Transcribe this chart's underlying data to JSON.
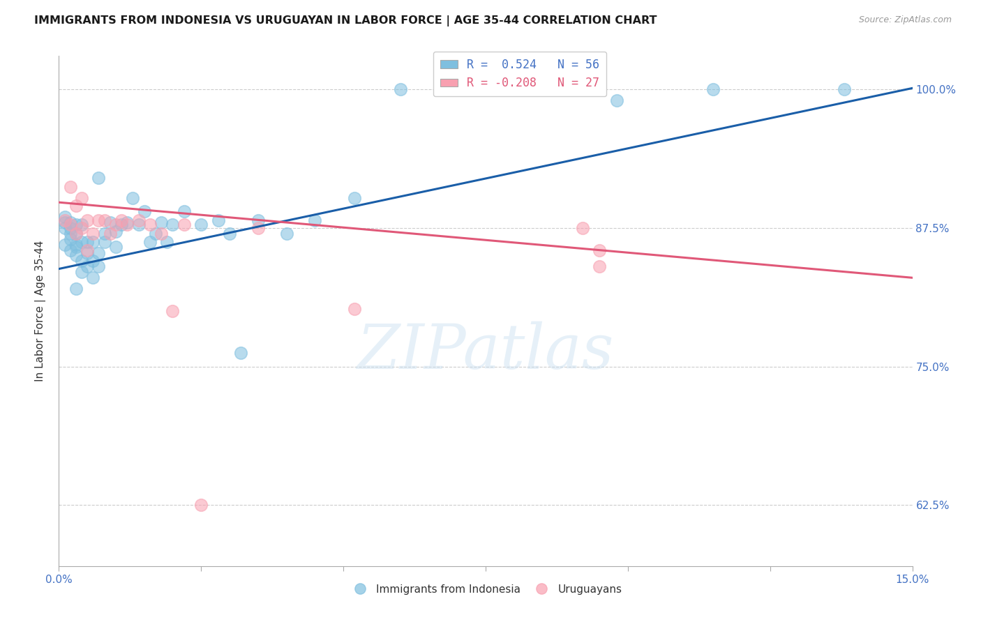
{
  "title": "IMMIGRANTS FROM INDONESIA VS URUGUAYAN IN LABOR FORCE | AGE 35-44 CORRELATION CHART",
  "source_text": "Source: ZipAtlas.com",
  "ylabel": "In Labor Force | Age 35-44",
  "xmin": 0.0,
  "xmax": 0.15,
  "ymin": 0.57,
  "ymax": 1.03,
  "yticks": [
    0.625,
    0.75,
    0.875,
    1.0
  ],
  "ytick_labels": [
    "62.5%",
    "75.0%",
    "87.5%",
    "100.0%"
  ],
  "xticks": [
    0.0,
    0.025,
    0.05,
    0.075,
    0.1,
    0.125,
    0.15
  ],
  "r_indonesia": 0.524,
  "n_indonesia": 56,
  "r_uruguayan": -0.208,
  "n_uruguayan": 27,
  "blue_color": "#7fbfdf",
  "pink_color": "#f8a0b0",
  "blue_line_color": "#1a5ea8",
  "pink_line_color": "#e05878",
  "blue_line_x0": 0.0,
  "blue_line_y0": 0.838,
  "blue_line_x1": 0.15,
  "blue_line_y1": 1.001,
  "pink_line_x0": 0.0,
  "pink_line_y0": 0.898,
  "pink_line_x1": 0.15,
  "pink_line_y1": 0.83,
  "indonesia_x": [
    0.001,
    0.001,
    0.001,
    0.001,
    0.002,
    0.002,
    0.002,
    0.002,
    0.002,
    0.003,
    0.003,
    0.003,
    0.003,
    0.003,
    0.003,
    0.004,
    0.004,
    0.004,
    0.004,
    0.005,
    0.005,
    0.005,
    0.006,
    0.006,
    0.006,
    0.007,
    0.007,
    0.007,
    0.008,
    0.008,
    0.009,
    0.01,
    0.01,
    0.011,
    0.012,
    0.013,
    0.014,
    0.015,
    0.016,
    0.017,
    0.018,
    0.019,
    0.02,
    0.022,
    0.025,
    0.028,
    0.03,
    0.032,
    0.035,
    0.04,
    0.045,
    0.052,
    0.06,
    0.098,
    0.115,
    0.138
  ],
  "indonesia_y": [
    0.875,
    0.88,
    0.885,
    0.86,
    0.87,
    0.875,
    0.88,
    0.855,
    0.865,
    0.86,
    0.87,
    0.878,
    0.82,
    0.85,
    0.858,
    0.835,
    0.845,
    0.862,
    0.878,
    0.84,
    0.852,
    0.862,
    0.83,
    0.845,
    0.862,
    0.84,
    0.852,
    0.92,
    0.862,
    0.87,
    0.88,
    0.858,
    0.872,
    0.878,
    0.88,
    0.902,
    0.878,
    0.89,
    0.862,
    0.87,
    0.88,
    0.862,
    0.878,
    0.89,
    0.878,
    0.882,
    0.87,
    0.762,
    0.882,
    0.87,
    0.882,
    0.902,
    1.0,
    0.99,
    1.0,
    1.0
  ],
  "uruguayan_x": [
    0.001,
    0.002,
    0.002,
    0.003,
    0.003,
    0.004,
    0.004,
    0.005,
    0.005,
    0.006,
    0.007,
    0.008,
    0.009,
    0.01,
    0.011,
    0.012,
    0.014,
    0.016,
    0.018,
    0.02,
    0.022,
    0.025,
    0.035,
    0.052,
    0.092,
    0.095,
    0.095
  ],
  "uruguayan_y": [
    0.882,
    0.878,
    0.912,
    0.87,
    0.895,
    0.875,
    0.902,
    0.855,
    0.882,
    0.87,
    0.882,
    0.882,
    0.87,
    0.878,
    0.882,
    0.878,
    0.882,
    0.878,
    0.87,
    0.8,
    0.878,
    0.625,
    0.875,
    0.802,
    0.875,
    0.855,
    0.84
  ],
  "watermark_text": "ZIPatlas",
  "legend_label_blue": "R =  0.524   N = 56",
  "legend_label_pink": "R = -0.208   N = 27"
}
